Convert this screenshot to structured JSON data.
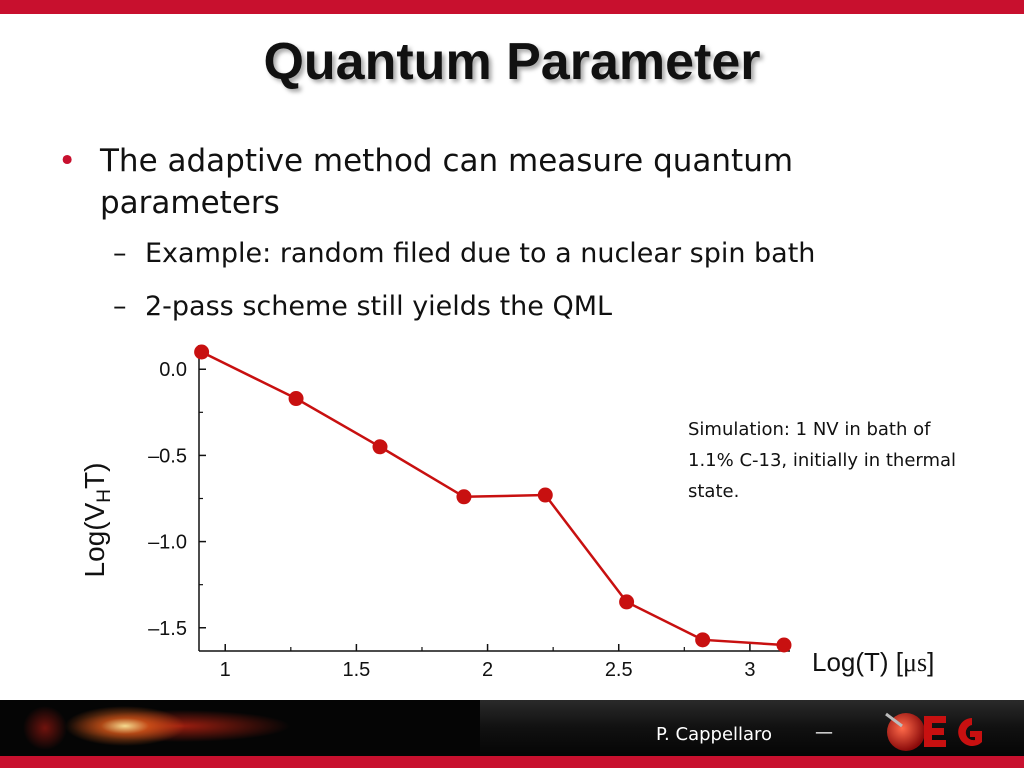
{
  "slide": {
    "title": "Quantum Parameter",
    "bullet_main": "The adaptive method can measure quantum parameters",
    "sub_bullets": [
      "Example: random filed due to a nuclear spin bath",
      "2-pass scheme still yields the QML"
    ],
    "note": "Simulation: 1 NV in bath of 1.1% C-13, initially in thermal state.",
    "footer_author": "P. Cappellaro",
    "footer_dash": "—",
    "colors": {
      "accent": "#c8102e",
      "series": "#c81010"
    },
    "icons": {
      "bullet": "•",
      "dash": "–"
    }
  },
  "chart_data": {
    "type": "line",
    "x": [
      0.91,
      1.27,
      1.59,
      1.91,
      2.22,
      2.53,
      2.82,
      3.13
    ],
    "y": [
      0.1,
      -0.17,
      -0.45,
      -0.74,
      -0.73,
      -1.35,
      -1.57,
      -1.6
    ],
    "xlabel_main": "Log(T) [",
    "xlabel_unit": "μs",
    "xlabel_end": "]",
    "ylabel_main": "Log(V",
    "ylabel_sub": "H",
    "ylabel_end": "T)",
    "xlim": [
      0.9,
      3.13
    ],
    "ylim": [
      -1.6,
      0.1
    ],
    "xticks": [
      1,
      1.5,
      2,
      2.5,
      3
    ],
    "xtick_labels": [
      "1",
      "1.5",
      "2",
      "2.5",
      "3"
    ],
    "yticks": [
      0,
      -0.5,
      -1,
      -1.5
    ],
    "ytick_labels": [
      "0.0",
      "–0.5",
      "–1.0",
      "–1.5"
    ],
    "grid": false,
    "legend": "none"
  }
}
